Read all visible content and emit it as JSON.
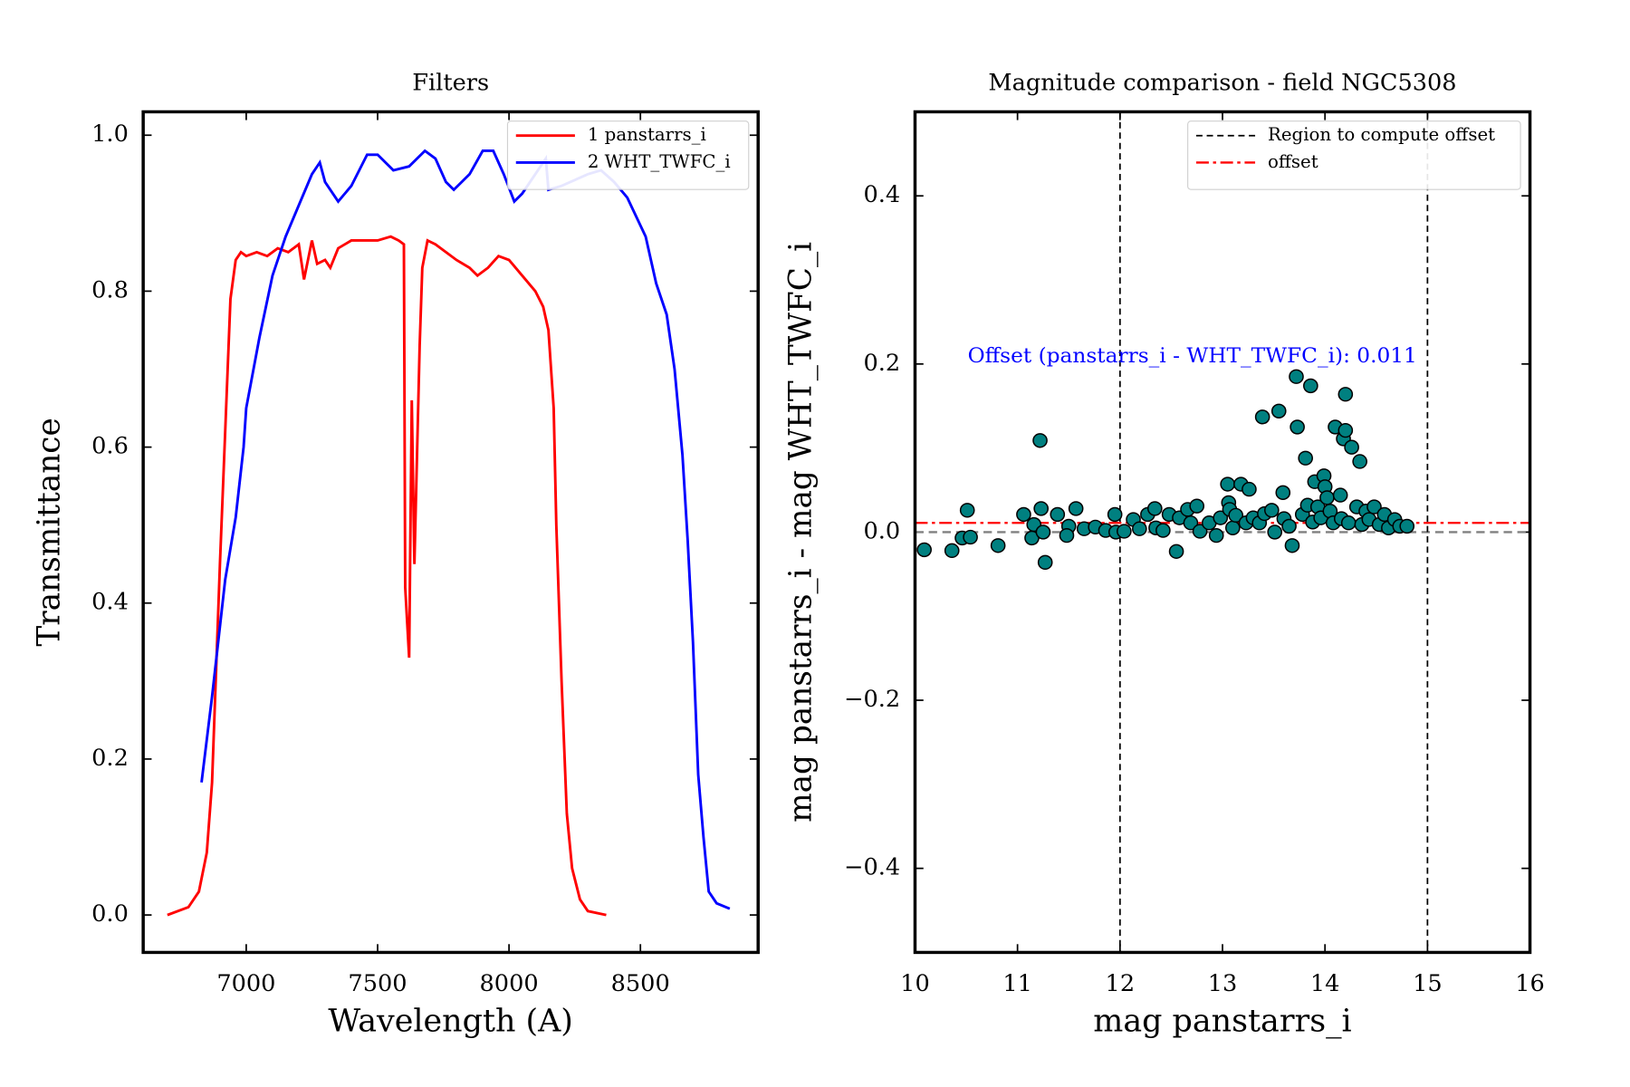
{
  "chart_data": [
    {
      "type": "line",
      "title": "Filters",
      "xlabel": "Wavelength (A)",
      "ylabel": "Transmittance",
      "xlim": [
        6608,
        8948
      ],
      "ylim": [
        -0.048,
        1.03
      ],
      "xticks": [
        7000,
        7500,
        8000,
        8500
      ],
      "yticks": [
        {
          "value": 0,
          "label": "0.0"
        },
        0.2,
        0.4,
        0.6,
        0.8,
        {
          "value": 1,
          "label": "1.0"
        }
      ],
      "legend": "upper right",
      "series": [
        {
          "name": "1 panstarrs_i",
          "color": "#ff0000",
          "x": [
            6700,
            6780,
            6820,
            6850,
            6870,
            6900,
            6920,
            6940,
            6960,
            6980,
            7000,
            7040,
            7080,
            7120,
            7160,
            7200,
            7220,
            7250,
            7270,
            7300,
            7320,
            7350,
            7400,
            7450,
            7500,
            7550,
            7580,
            7600,
            7605,
            7620,
            7630,
            7640,
            7660,
            7670,
            7690,
            7720,
            7800,
            7850,
            7880,
            7920,
            7960,
            8000,
            8050,
            8100,
            8130,
            8150,
            8170,
            8180,
            8200,
            8220,
            8240,
            8270,
            8300,
            8370
          ],
          "values": [
            0.0,
            0.01,
            0.03,
            0.08,
            0.17,
            0.45,
            0.62,
            0.79,
            0.84,
            0.85,
            0.845,
            0.85,
            0.845,
            0.855,
            0.85,
            0.86,
            0.815,
            0.865,
            0.835,
            0.84,
            0.83,
            0.855,
            0.865,
            0.865,
            0.865,
            0.87,
            0.865,
            0.86,
            0.42,
            0.33,
            0.66,
            0.45,
            0.73,
            0.83,
            0.865,
            0.86,
            0.84,
            0.83,
            0.82,
            0.83,
            0.845,
            0.84,
            0.82,
            0.8,
            0.78,
            0.75,
            0.65,
            0.5,
            0.3,
            0.13,
            0.06,
            0.02,
            0.005,
            0.0
          ]
        },
        {
          "name": "2 WHT_TWFC_i",
          "color": "#0000ff",
          "x": [
            6830,
            6870,
            6920,
            6960,
            6990,
            7000,
            7050,
            7100,
            7150,
            7200,
            7250,
            7280,
            7300,
            7350,
            7400,
            7460,
            7500,
            7560,
            7620,
            7680,
            7720,
            7760,
            7790,
            7850,
            7900,
            7940,
            7980,
            8020,
            8050,
            8100,
            8140,
            8150,
            8200,
            8300,
            8350,
            8400,
            8450,
            8520,
            8560,
            8600,
            8630,
            8660,
            8680,
            8700,
            8720,
            8740,
            8760,
            8790,
            8840
          ],
          "values": [
            0.17,
            0.28,
            0.43,
            0.51,
            0.6,
            0.65,
            0.74,
            0.82,
            0.87,
            0.91,
            0.95,
            0.965,
            0.94,
            0.915,
            0.935,
            0.975,
            0.975,
            0.955,
            0.96,
            0.98,
            0.97,
            0.94,
            0.93,
            0.95,
            0.98,
            0.98,
            0.95,
            0.915,
            0.925,
            0.95,
            0.97,
            0.93,
            0.935,
            0.95,
            0.955,
            0.94,
            0.92,
            0.87,
            0.81,
            0.77,
            0.7,
            0.59,
            0.48,
            0.35,
            0.18,
            0.1,
            0.03,
            0.015,
            0.008
          ]
        }
      ]
    },
    {
      "type": "scatter",
      "title": "Magnitude comparison - field NGC5308",
      "xlabel": "mag panstarrs_i",
      "ylabel": "mag panstarrs_i - mag WHT_TWFC_i",
      "xlim": [
        10,
        16
      ],
      "ylim": [
        -0.5,
        0.5
      ],
      "xticks": [
        10,
        11,
        12,
        13,
        14,
        15,
        16
      ],
      "yticks": [
        {
          "value": -0.4,
          "label": "−0.4"
        },
        {
          "value": -0.2,
          "label": "−0.2"
        },
        {
          "value": 0,
          "label": "0.0"
        },
        0.2,
        0.4
      ],
      "legend": "upper right",
      "color": "#008080",
      "region": {
        "name": "Region to compute offset",
        "values": [
          12,
          15
        ],
        "color": "#000000"
      },
      "offset": {
        "name": "offset",
        "value": 0.011,
        "color": "#ff0000"
      },
      "reference_line": {
        "value": 0,
        "color": "#808080"
      },
      "annotation": "Offset (panstarrs_i - WHT_TWFC_i): 0.011",
      "x": [
        10.09,
        10.36,
        10.46,
        10.51,
        10.54,
        10.81,
        11.06,
        11.14,
        11.16,
        11.22,
        11.23,
        11.27,
        11.25,
        11.39,
        11.5,
        11.57,
        11.48,
        11.65,
        11.76,
        11.86,
        11.95,
        11.96,
        12.04,
        12.13,
        12.19,
        12.27,
        12.34,
        12.35,
        12.42,
        12.48,
        12.55,
        12.58,
        12.66,
        12.69,
        12.75,
        12.78,
        12.87,
        12.94,
        12.98,
        13.05,
        13.06,
        13.07,
        13.1,
        13.13,
        13.18,
        13.23,
        13.26,
        13.3,
        13.36,
        13.39,
        13.41,
        13.48,
        13.51,
        13.55,
        13.59,
        13.6,
        13.65,
        13.68,
        13.72,
        13.73,
        13.78,
        13.81,
        13.83,
        13.86,
        13.88,
        13.9,
        13.93,
        13.96,
        13.99,
        14.0,
        14.02,
        14.05,
        14.08,
        14.1,
        14.15,
        14.16,
        14.18,
        14.2,
        14.2,
        14.23,
        14.26,
        14.31,
        14.34,
        14.36,
        14.4,
        14.43,
        14.48,
        14.53,
        14.58,
        14.62,
        14.68,
        14.73,
        14.8
      ],
      "values": [
        -0.021,
        -0.022,
        -0.007,
        0.026,
        -0.006,
        -0.016,
        0.021,
        -0.007,
        0.009,
        0.109,
        0.028,
        -0.036,
        0.0,
        0.021,
        0.007,
        0.028,
        -0.004,
        0.004,
        0.006,
        0.002,
        0.021,
        0.0,
        0.001,
        0.015,
        0.004,
        0.021,
        0.028,
        0.005,
        0.002,
        0.021,
        -0.023,
        0.017,
        0.027,
        0.011,
        0.031,
        0.001,
        0.011,
        -0.004,
        0.017,
        0.057,
        0.035,
        0.027,
        0.005,
        0.02,
        0.057,
        0.011,
        0.051,
        0.017,
        0.011,
        0.137,
        0.022,
        0.026,
        0.0,
        0.144,
        0.047,
        0.016,
        0.007,
        -0.016,
        0.185,
        0.125,
        0.021,
        0.088,
        0.032,
        0.174,
        0.012,
        0.06,
        0.03,
        0.017,
        0.067,
        0.054,
        0.041,
        0.025,
        0.011,
        0.125,
        0.044,
        0.016,
        0.111,
        0.164,
        0.121,
        0.011,
        0.101,
        0.03,
        0.084,
        0.009,
        0.025,
        0.015,
        0.03,
        0.009,
        0.021,
        0.005,
        0.015,
        0.007,
        0.007
      ]
    }
  ]
}
